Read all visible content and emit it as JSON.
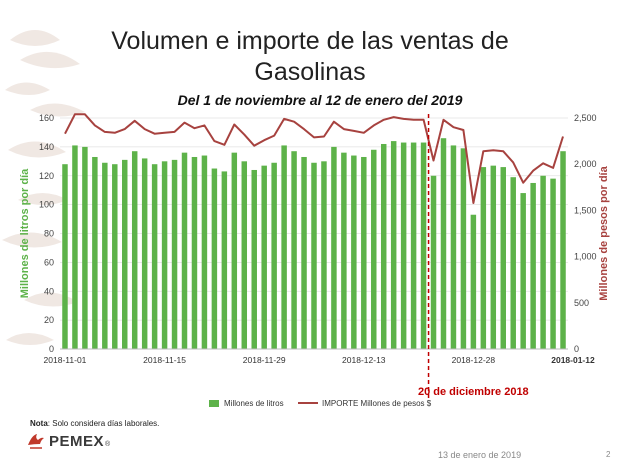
{
  "slide": {
    "title_line1": "Volumen e importe de las ventas de",
    "title_line2": "Gasolinas",
    "subtitle": "Del 1 de noviembre al 12 de enero del 2019",
    "note_bold": "Nota",
    "note_text": ": Solo considera días laborales.",
    "logo_text": "PEMEX",
    "logo_mark": "®",
    "footer_date": "13 de enero de 2019",
    "page_number": "2",
    "marker_label": "20 de diciembre 2018"
  },
  "chart_data": {
    "type": "bar",
    "title": "Volumen e importe de las ventas de Gasolinas",
    "subtitle": "Del 1 de noviembre al 12 de enero del 2019",
    "ylabel": "Millones de litros por día",
    "y2label": "Millones de pesos por día",
    "ylim": [
      0,
      160
    ],
    "y2lim": [
      0,
      2500
    ],
    "yticks": [
      "0",
      "20",
      "40",
      "60",
      "80",
      "100",
      "120",
      "140",
      "160"
    ],
    "y2ticks": [
      "0",
      "500",
      "1,000",
      "1,500",
      "2,000",
      "2,500"
    ],
    "xticklabels": [
      "2018-11-01",
      "2018-11-15",
      "2018-11-29",
      "2018-12-13",
      "2018-12-28",
      "2018-01-12"
    ],
    "xtick_index": [
      0,
      10,
      20,
      30,
      41,
      51
    ],
    "marker_index": 36.5,
    "colors": {
      "bars": "#5db249",
      "line": "#a7423f",
      "marker": "#c00000",
      "axis_left": "#5db249",
      "axis_right": "#a7423f"
    },
    "series": [
      {
        "name": "Millones de litros",
        "kind": "bar",
        "values": [
          128,
          141,
          140,
          133,
          129,
          128,
          131,
          137,
          132,
          128,
          130,
          131,
          136,
          133,
          134,
          125,
          123,
          136,
          130,
          124,
          127,
          129,
          141,
          137,
          133,
          129,
          130,
          140,
          136,
          134,
          133,
          138,
          142,
          144,
          143,
          143,
          143,
          120,
          146,
          141,
          139,
          93,
          126,
          127,
          126,
          119,
          108,
          115,
          120,
          118,
          137
        ]
      },
      {
        "name": "IMPORTE Millones de pesos $",
        "kind": "line",
        "values": [
          2330,
          2540,
          2540,
          2420,
          2350,
          2340,
          2380,
          2470,
          2380,
          2330,
          2340,
          2350,
          2450,
          2390,
          2420,
          2250,
          2210,
          2430,
          2320,
          2200,
          2260,
          2310,
          2490,
          2460,
          2380,
          2290,
          2300,
          2460,
          2380,
          2360,
          2340,
          2420,
          2480,
          2510,
          2490,
          2480,
          2480,
          2040,
          2480,
          2400,
          2370,
          1580,
          2140,
          2150,
          2140,
          2020,
          1800,
          1930,
          2010,
          1960,
          2300
        ]
      }
    ],
    "legend": "bottom-center",
    "grid": true
  }
}
